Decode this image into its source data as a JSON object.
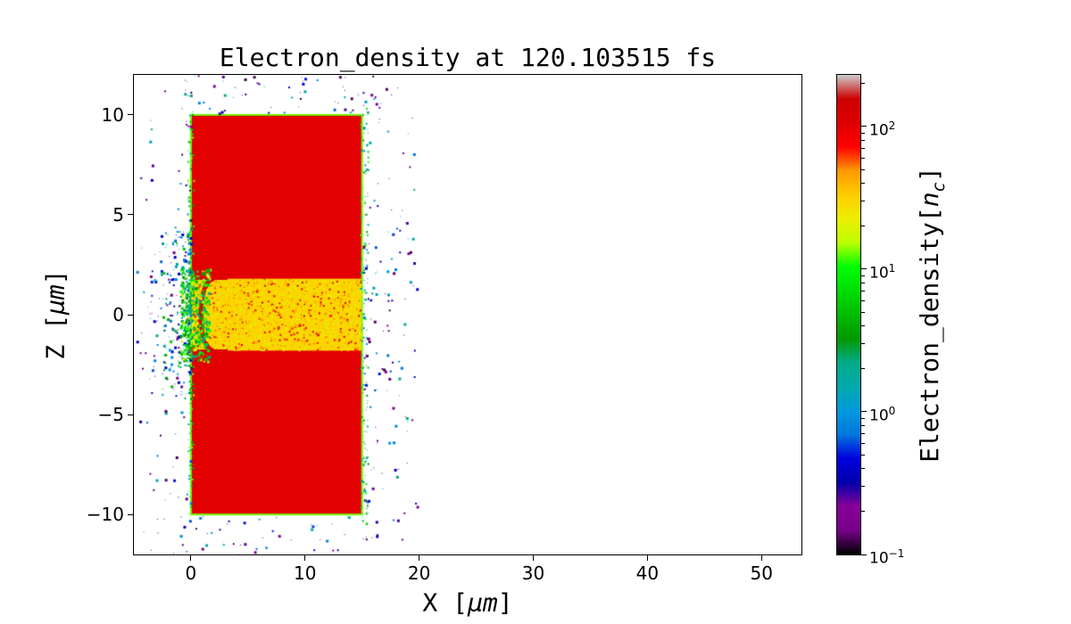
{
  "chart_data": {
    "type": "heatmap",
    "title": "Electron_density at 120.103515 fs",
    "xlabel": {
      "pre": "X [",
      "unit": "μm",
      "post": "]"
    },
    "ylabel": {
      "pre": "Z [",
      "unit": "μm",
      "post": "]"
    },
    "xlim": [
      -5,
      53.5
    ],
    "ylim": [
      -12,
      12
    ],
    "xticks": [
      0,
      10,
      20,
      30,
      40,
      50
    ],
    "yticks": [
      10,
      5,
      0,
      -5,
      -10
    ],
    "grid": false,
    "legend": false,
    "colormap": {
      "name": "nipy_spectral",
      "stops": [
        [
          0.0,
          "#000000"
        ],
        [
          0.05,
          "#770088"
        ],
        [
          0.1,
          "#880099"
        ],
        [
          0.15,
          "#0000aa"
        ],
        [
          0.2,
          "#0000dd"
        ],
        [
          0.25,
          "#0077dd"
        ],
        [
          0.3,
          "#0099dd"
        ],
        [
          0.35,
          "#00aaaa"
        ],
        [
          0.4,
          "#00aa88"
        ],
        [
          0.45,
          "#009900"
        ],
        [
          0.5,
          "#00bb00"
        ],
        [
          0.55,
          "#00dd00"
        ],
        [
          0.6,
          "#00ff00"
        ],
        [
          0.65,
          "#bbff00"
        ],
        [
          0.7,
          "#eeee00"
        ],
        [
          0.75,
          "#ffcc00"
        ],
        [
          0.8,
          "#ff9900"
        ],
        [
          0.85,
          "#ff0000"
        ],
        [
          0.9,
          "#dd0000"
        ],
        [
          0.95,
          "#cc0000"
        ],
        [
          1.0,
          "#cccccc"
        ]
      ]
    },
    "colorbar": {
      "scale": "log",
      "vmin": 0.1,
      "vmax": 230,
      "label": {
        "pre": "Electron_density[",
        "unit": "n",
        "sub": "c",
        "post": "]"
      },
      "ticks": [
        {
          "value": 100,
          "base": "10",
          "exp": "2"
        },
        {
          "value": 10,
          "base": "10",
          "exp": "1"
        },
        {
          "value": 1,
          "base": "10",
          "exp": "0"
        },
        {
          "value": 0.1,
          "base": "10",
          "exp": "−1"
        }
      ]
    },
    "regions": [
      {
        "name": "target-slab",
        "x": [
          0,
          15
        ],
        "z": [
          -10,
          10
        ],
        "density": 100
      },
      {
        "name": "slab-edge",
        "density": 13
      },
      {
        "name": "channel",
        "x": [
          0,
          15
        ],
        "z": [
          -1.8,
          1.8
        ],
        "density": 30
      },
      {
        "name": "channel-front",
        "center": [
          2.0,
          0
        ],
        "rx": 1.15,
        "ry": 1.8,
        "density": 110
      },
      {
        "name": "channel-wall-streaks",
        "x": [
          0,
          3.2
        ],
        "z": [
          -1.8,
          1.8
        ],
        "density": 110
      }
    ],
    "scatter": {
      "description": "sparse ejected low-density particles around the target",
      "clusters": [
        {
          "name": "channel-speckle",
          "x": [
            0,
            15
          ],
          "z": [
            -1.78,
            1.78
          ],
          "count": 1500,
          "value": [
            20,
            150
          ],
          "value_bias": 2.4,
          "max_size": 2
        },
        {
          "name": "left-halo",
          "x": [
            -4.8,
            -0.05
          ],
          "z": [
            -12,
            12
          ],
          "count": 210,
          "value": [
            0.12,
            2.5
          ],
          "value_bias": 1.3,
          "xbias": "right",
          "z_center": 0.55,
          "max_size": 3
        },
        {
          "name": "right-halo",
          "x": [
            15.05,
            19.8
          ],
          "z": [
            -11.5,
            11.5
          ],
          "count": 150,
          "value": [
            0.12,
            2.5
          ],
          "value_bias": 1.3,
          "xbias": "left",
          "z_center": 0.3,
          "max_size": 3
        },
        {
          "name": "top-halo",
          "x": [
            -1,
            16.5
          ],
          "z": [
            10.05,
            12.2
          ],
          "count": 60,
          "value": [
            0.12,
            2
          ],
          "value_bias": 1.3,
          "max_size": 3
        },
        {
          "name": "bottom-halo",
          "x": [
            -1,
            16.5
          ],
          "z": [
            -12.2,
            -10.05
          ],
          "count": 50,
          "value": [
            0.12,
            2
          ],
          "value_bias": 1.3,
          "max_size": 3
        },
        {
          "name": "left-edge-speckle",
          "x": [
            -0.3,
            0.2
          ],
          "z": [
            -10.3,
            10.3
          ],
          "count": 170,
          "value": [
            1.2,
            18
          ],
          "value_bias": 1.0,
          "max_size": 2
        },
        {
          "name": "right-edge-speckle",
          "x": [
            14.8,
            15.5
          ],
          "z": [
            -10.5,
            10.5
          ],
          "count": 150,
          "value": [
            0.8,
            12
          ],
          "value_bias": 1.0,
          "max_size": 2
        },
        {
          "name": "entrance-halo",
          "x": [
            -2.6,
            -0.05
          ],
          "z": [
            -4.2,
            4.2
          ],
          "count": 160,
          "value": [
            0.3,
            6
          ],
          "value_bias": 1.1,
          "xbias": "right",
          "max_size": 3
        },
        {
          "name": "entrance-turbulence",
          "x": [
            -1.0,
            1.6
          ],
          "z": [
            -2.3,
            2.3
          ],
          "count": 500,
          "value": [
            1.5,
            25
          ],
          "value_bias": 1.0,
          "max_size": 3
        }
      ]
    }
  }
}
